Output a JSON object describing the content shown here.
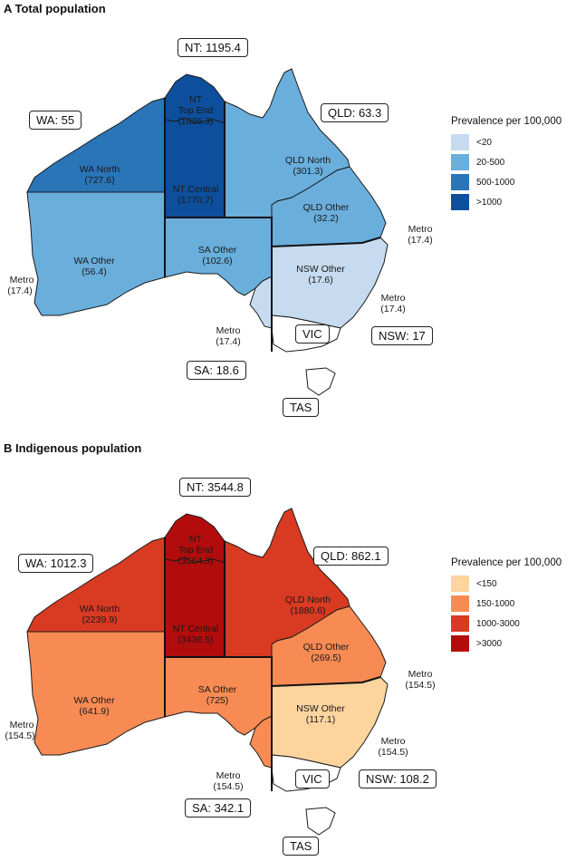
{
  "panels": [
    {
      "title": "A  Total population",
      "state_labels": {
        "nt": "NT: 1195.4",
        "wa": "WA: 55",
        "qld": "QLD: 63.3",
        "sa": "SA: 18.6",
        "nsw": "NSW: 17",
        "vic": "VIC",
        "tas": "TAS"
      },
      "regions": {
        "wa_north": {
          "name": "WA North",
          "value": "(727.6)",
          "color": "#2a74b8"
        },
        "wa_other": {
          "name": "WA Other",
          "value": "(56.4)",
          "color": "#6aaedc"
        },
        "nt_top": {
          "name": "NT",
          "name2": "Top End",
          "value": "(1065.3)",
          "color": "#0d4f9c"
        },
        "nt_central": {
          "name": "NT Central",
          "value": "(1770.7)",
          "color": "#0d4f9c"
        },
        "sa_other": {
          "name": "SA Other",
          "value": "(102.6)",
          "color": "#6aaedc"
        },
        "qld_north": {
          "name": "QLD North",
          "value": "(301.3)",
          "color": "#6aaedc"
        },
        "qld_other": {
          "name": "QLD Other",
          "value": "(32.2)",
          "color": "#6aaedc"
        },
        "nsw_other": {
          "name": "NSW Other",
          "value": "(17.6)",
          "color": "#c6dbef"
        },
        "vic": {
          "color": "#ffffff"
        },
        "tas": {
          "color": "#ffffff"
        },
        "sa_metro": {
          "color": "#c6dbef"
        }
      },
      "metro_labels": {
        "wa": {
          "name": "Metro",
          "value": "(17.4)"
        },
        "sa": {
          "name": "Metro",
          "value": "(17.4)"
        },
        "qld": {
          "name": "Metro",
          "value": "(17.4)"
        },
        "nsw": {
          "name": "Metro",
          "value": "(17.4)"
        }
      },
      "legend": {
        "title": "Prevalence per 100,000",
        "items": [
          {
            "label": "<20",
            "color": "#c6dbef"
          },
          {
            "label": "20-500",
            "color": "#6aaedc"
          },
          {
            "label": "500-1000",
            "color": "#2a74b8"
          },
          {
            "label": ">1000",
            "color": "#0d4f9c"
          }
        ]
      }
    },
    {
      "title": "B  Indigenous population",
      "state_labels": {
        "nt": "NT: 3544.8",
        "wa": "WA: 1012.3",
        "qld": "QLD: 862.1",
        "sa": "SA: 342.1",
        "nsw": "NSW: 108.2",
        "vic": "VIC",
        "tas": "TAS"
      },
      "regions": {
        "wa_north": {
          "name": "WA North",
          "value": "(2239.9)",
          "color": "#d93a22"
        },
        "wa_other": {
          "name": "WA Other",
          "value": "(641.9)",
          "color": "#f78b53"
        },
        "nt_top": {
          "name": "NT",
          "name2": "Top End",
          "value": "(3564.3)",
          "color": "#b30c0c"
        },
        "nt_central": {
          "name": "NT Central",
          "value": "(3436.5)",
          "color": "#b30c0c"
        },
        "sa_other": {
          "name": "SA Other",
          "value": "(725)",
          "color": "#f78b53"
        },
        "qld_north": {
          "name": "QLD North",
          "value": "(1880.6)",
          "color": "#d93a22"
        },
        "qld_other": {
          "name": "QLD Other",
          "value": "(269.5)",
          "color": "#f78b53"
        },
        "nsw_other": {
          "name": "NSW Other",
          "value": "(117.1)",
          "color": "#fdd49e"
        },
        "vic": {
          "color": "#ffffff"
        },
        "tas": {
          "color": "#ffffff"
        },
        "sa_metro": {
          "color": "#f78b53"
        }
      },
      "metro_labels": {
        "wa": {
          "name": "Metro",
          "value": "(154.5)"
        },
        "sa": {
          "name": "Metro",
          "value": "(154.5)"
        },
        "qld": {
          "name": "Metro",
          "value": "(154.5)"
        },
        "nsw": {
          "name": "Metro",
          "value": "(154.5)"
        }
      },
      "legend": {
        "title": "Prevalence per 100,000",
        "items": [
          {
            "label": "<150",
            "color": "#fdd49e"
          },
          {
            "label": "150-1000",
            "color": "#f78b53"
          },
          {
            "label": "1000-3000",
            "color": "#d93a22"
          },
          {
            "label": ">3000",
            "color": "#b30c0c"
          }
        ]
      }
    }
  ]
}
